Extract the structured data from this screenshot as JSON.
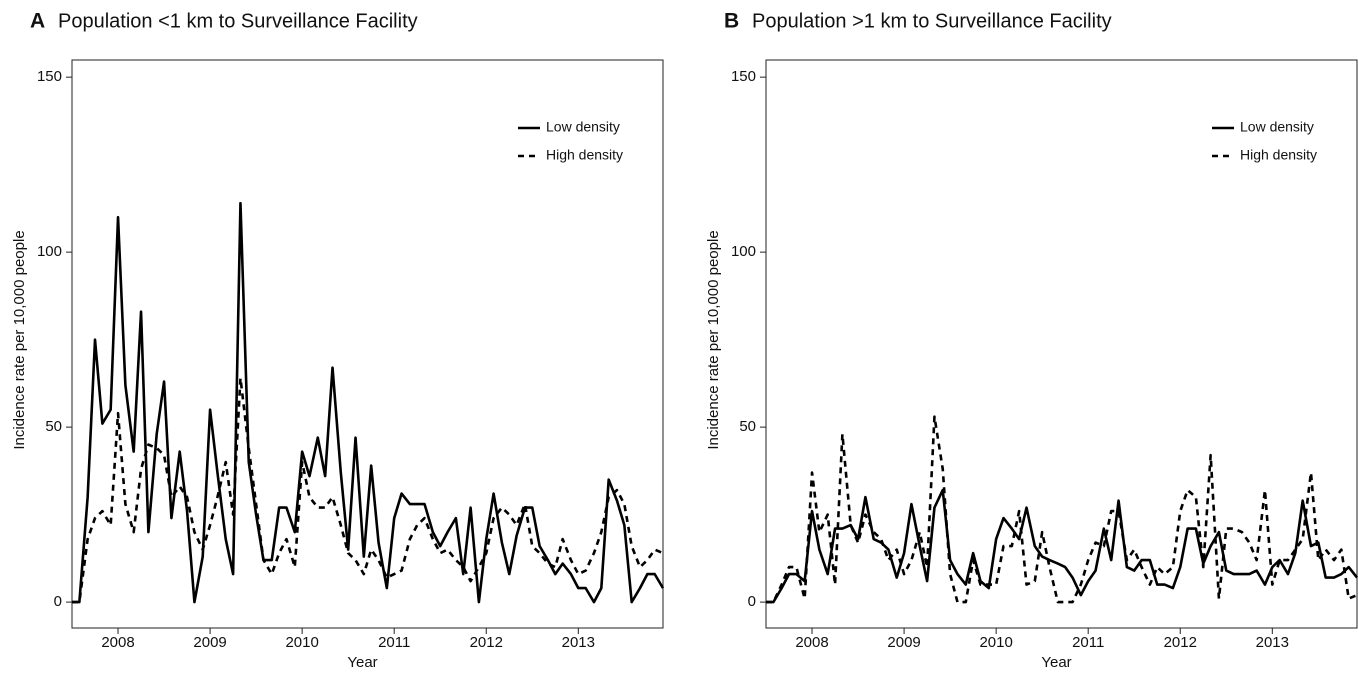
{
  "chart_data": [
    {
      "type": "line",
      "panel_label": "A",
      "title": "Population <1 km to Surveillance Facility",
      "xlabel": "Year",
      "ylabel": "Incidence rate per 10,000 people",
      "xlim": [
        2007.5,
        2013.92
      ],
      "ylim": [
        -7.4,
        154.9
      ],
      "xticks": [
        2008,
        2009,
        2010,
        2011,
        2012,
        2013
      ],
      "yticks": [
        0,
        50,
        100,
        150
      ],
      "legend": "upper right",
      "x": [
        2007.5,
        2007.58,
        2007.67,
        2007.75,
        2007.83,
        2007.92,
        2008,
        2008.08,
        2008.17,
        2008.25,
        2008.33,
        2008.42,
        2008.5,
        2008.58,
        2008.67,
        2008.75,
        2008.83,
        2008.92,
        2009,
        2009.08,
        2009.17,
        2009.25,
        2009.33,
        2009.42,
        2009.5,
        2009.58,
        2009.67,
        2009.75,
        2009.83,
        2009.92,
        2010,
        2010.08,
        2010.17,
        2010.25,
        2010.33,
        2010.42,
        2010.5,
        2010.58,
        2010.67,
        2010.75,
        2010.83,
        2010.92,
        2011,
        2011.08,
        2011.17,
        2011.25,
        2011.33,
        2011.42,
        2011.5,
        2011.58,
        2011.67,
        2011.75,
        2011.83,
        2011.92,
        2012,
        2012.08,
        2012.17,
        2012.25,
        2012.33,
        2012.42,
        2012.5,
        2012.58,
        2012.67,
        2012.75,
        2012.83,
        2012.92,
        2013,
        2013.08,
        2013.17,
        2013.25,
        2013.33,
        2013.42,
        2013.5,
        2013.58,
        2013.67,
        2013.75,
        2013.83,
        2013.92
      ],
      "series": [
        {
          "name": "Low density",
          "color": "#000000",
          "dash": "solid",
          "values": [
            0,
            0,
            30,
            75,
            51,
            55,
            110,
            62,
            43,
            83,
            20,
            48,
            63,
            24,
            43,
            26,
            0,
            13,
            55,
            37,
            18,
            8,
            114,
            40,
            25,
            12,
            12,
            27,
            27,
            20,
            43,
            36,
            47,
            36,
            67,
            37,
            15,
            47,
            13,
            39,
            17,
            4,
            24,
            31,
            28,
            28,
            28,
            20,
            16,
            20,
            24,
            8,
            27,
            0,
            18,
            31,
            17,
            8,
            19,
            27,
            27,
            16,
            12,
            8,
            11,
            8,
            4,
            4,
            0,
            4,
            35,
            29,
            22,
            0,
            4,
            8,
            8,
            4
          ]
        },
        {
          "name": "High density",
          "color": "#000000",
          "dash": "dashed",
          "values": [
            0,
            0,
            18,
            24,
            26,
            22,
            54,
            28,
            20,
            38,
            45,
            44,
            42,
            30,
            33,
            30,
            20,
            15,
            22,
            30,
            40,
            25,
            64,
            44,
            28,
            12,
            8,
            14,
            18,
            10,
            40,
            30,
            27,
            27,
            30,
            22,
            14,
            12,
            8,
            15,
            12,
            7,
            8,
            9,
            18,
            22,
            24,
            18,
            14,
            15,
            12,
            10,
            6,
            10,
            14,
            24,
            27,
            25,
            22,
            28,
            16,
            14,
            11,
            10,
            18,
            12,
            8,
            9,
            14,
            20,
            30,
            32,
            28,
            16,
            10,
            12,
            15,
            14
          ]
        }
      ]
    },
    {
      "type": "line",
      "panel_label": "B",
      "title": "Population >1 km to Surveillance Facility",
      "xlabel": "Year",
      "ylabel": "Incidence rate per 10,000 people",
      "xlim": [
        2007.5,
        2013.92
      ],
      "ylim": [
        -7.4,
        154.9
      ],
      "xticks": [
        2008,
        2009,
        2010,
        2011,
        2012,
        2013
      ],
      "yticks": [
        0,
        50,
        100,
        150
      ],
      "legend": "upper right",
      "x": [
        2007.5,
        2007.58,
        2007.67,
        2007.75,
        2007.83,
        2007.92,
        2008,
        2008.08,
        2008.17,
        2008.25,
        2008.33,
        2008.42,
        2008.5,
        2008.58,
        2008.67,
        2008.75,
        2008.83,
        2008.92,
        2009,
        2009.08,
        2009.17,
        2009.25,
        2009.33,
        2009.42,
        2009.5,
        2009.58,
        2009.67,
        2009.75,
        2009.83,
        2009.92,
        2010,
        2010.08,
        2010.17,
        2010.25,
        2010.33,
        2010.42,
        2010.5,
        2010.58,
        2010.67,
        2010.75,
        2010.83,
        2010.92,
        2011,
        2011.08,
        2011.17,
        2011.25,
        2011.33,
        2011.42,
        2011.5,
        2011.58,
        2011.67,
        2011.75,
        2011.83,
        2011.92,
        2012,
        2012.08,
        2012.17,
        2012.25,
        2012.33,
        2012.42,
        2012.5,
        2012.58,
        2012.67,
        2012.75,
        2012.83,
        2012.92,
        2013,
        2013.08,
        2013.17,
        2013.25,
        2013.33,
        2013.42,
        2013.5,
        2013.58,
        2013.67,
        2013.75,
        2013.83,
        2013.92
      ],
      "series": [
        {
          "name": "Low density",
          "color": "#000000",
          "dash": "solid",
          "values": [
            0,
            0,
            4,
            8,
            8,
            6,
            26,
            15,
            8,
            21,
            21,
            22,
            18,
            30,
            18,
            17,
            15,
            7,
            14,
            28,
            16,
            6,
            27,
            32,
            12,
            8,
            5,
            14,
            6,
            4,
            18,
            24,
            21,
            18,
            27,
            16,
            13,
            12,
            11,
            10,
            7,
            2,
            6,
            9,
            21,
            12,
            29,
            10,
            9,
            12,
            12,
            5,
            5,
            4,
            10,
            21,
            21,
            11,
            16,
            20,
            9,
            8,
            8,
            8,
            9,
            5,
            10,
            12,
            8,
            14,
            29,
            16,
            17,
            7,
            7,
            8,
            10,
            7
          ]
        },
        {
          "name": "High density",
          "color": "#000000",
          "dash": "dashed",
          "values": [
            0,
            0,
            5,
            10,
            10,
            1,
            37,
            20,
            25,
            5,
            48,
            22,
            17,
            25,
            20,
            18,
            12,
            15,
            8,
            12,
            20,
            10,
            53,
            38,
            8,
            0,
            0,
            12,
            5,
            5,
            5,
            16,
            16,
            26,
            5,
            6,
            20,
            10,
            0,
            0,
            0,
            5,
            12,
            17,
            16,
            26,
            26,
            12,
            15,
            10,
            5,
            10,
            8,
            10,
            26,
            32,
            30,
            10,
            42,
            1,
            21,
            21,
            20,
            17,
            12,
            32,
            5,
            12,
            12,
            15,
            18,
            37,
            12,
            15,
            12,
            15,
            1,
            2
          ]
        }
      ]
    }
  ]
}
